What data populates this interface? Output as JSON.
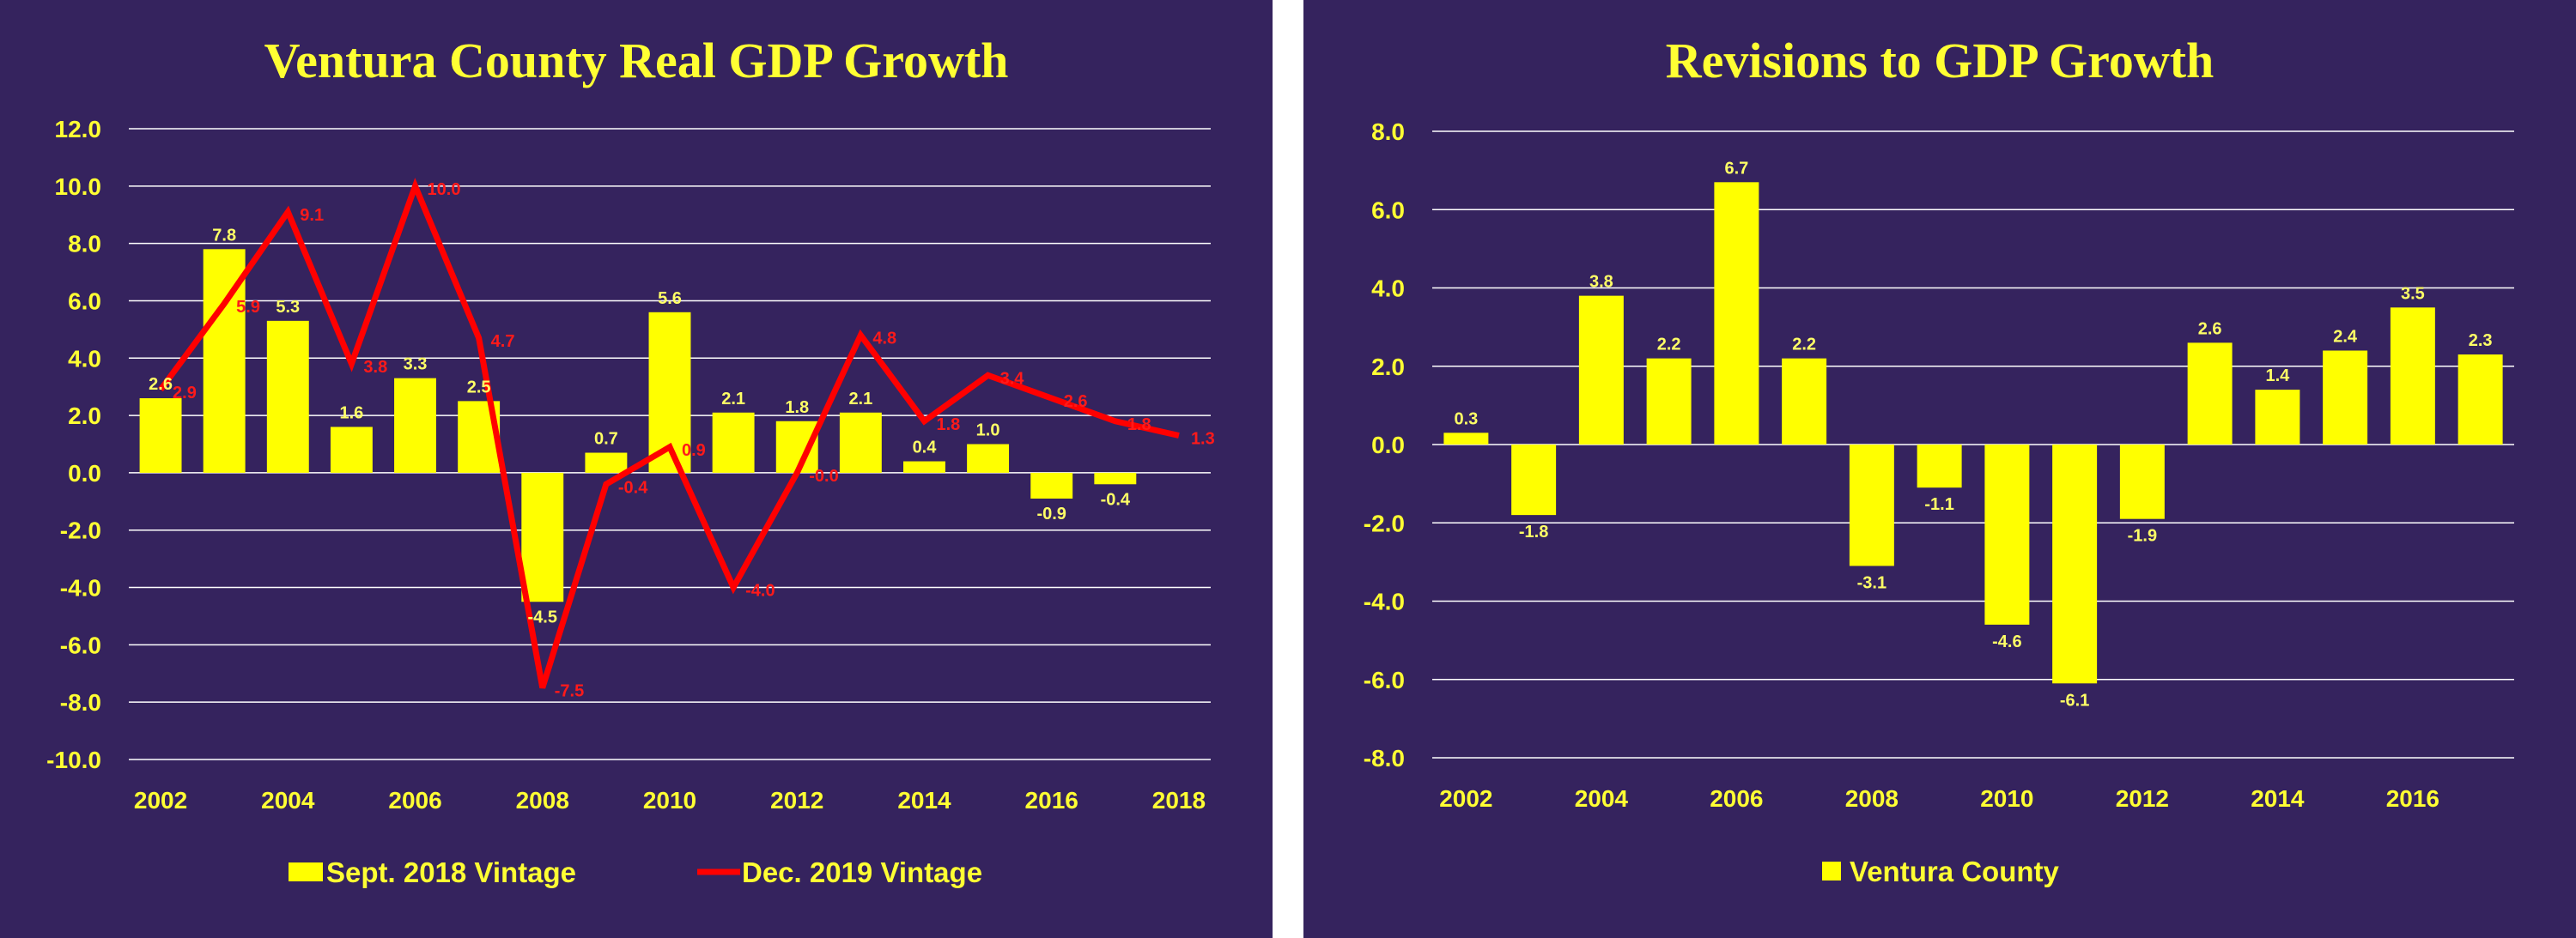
{
  "colors": {
    "background": "#35235e",
    "bar": "#ffff00",
    "line": "#ff0000",
    "text": "#ffff33",
    "grid": "#ffffff"
  },
  "chart_data": [
    {
      "type": "bar",
      "title": "Ventura County Real GDP Growth",
      "x": [
        2002,
        2003,
        2004,
        2005,
        2006,
        2007,
        2008,
        2009,
        2010,
        2011,
        2012,
        2013,
        2014,
        2015,
        2016,
        2017,
        2018
      ],
      "x_tick_labels": [
        "2002",
        "2004",
        "2006",
        "2008",
        "2010",
        "2012",
        "2014",
        "2016",
        "2018"
      ],
      "y_tick_labels": [
        "12.0",
        "10.0",
        "8.0",
        "6.0",
        "4.0",
        "2.0",
        "0.0",
        "-2.0",
        "-4.0",
        "-6.0",
        "-8.0",
        "-10.0"
      ],
      "ylim": [
        -10,
        12
      ],
      "grid": true,
      "legend_position": "bottom",
      "series": [
        {
          "name": "Sept. 2018 Vintage",
          "type": "bar",
          "x": [
            2002,
            2003,
            2004,
            2005,
            2006,
            2007,
            2008,
            2009,
            2010,
            2011,
            2012,
            2013,
            2014,
            2015,
            2016,
            2017
          ],
          "values": [
            2.6,
            7.8,
            5.3,
            1.6,
            3.3,
            2.5,
            -4.5,
            0.7,
            5.6,
            2.1,
            1.8,
            2.1,
            0.4,
            1.0,
            -0.9,
            -0.4
          ],
          "labels": [
            "2.6",
            "7.8",
            "5.3",
            "1.6",
            "3.3",
            "2.5",
            "-4.5",
            "0.7",
            "5.6",
            "2.1",
            "1.8",
            "2.1",
            "0.4",
            "1.0",
            "-0.9",
            "-0.4"
          ]
        },
        {
          "name": "Dec. 2019 Vintage",
          "type": "line",
          "x": [
            2002,
            2003,
            2004,
            2005,
            2006,
            2007,
            2008,
            2009,
            2010,
            2011,
            2012,
            2013,
            2014,
            2015,
            2016,
            2017,
            2018
          ],
          "values": [
            2.9,
            5.9,
            9.1,
            3.8,
            10.0,
            4.7,
            -7.5,
            -0.4,
            0.9,
            -4.0,
            -0.0,
            4.8,
            1.8,
            3.4,
            2.6,
            1.8,
            1.3
          ],
          "labels": [
            "2.9",
            "5.9",
            "9.1",
            "3.8",
            "10.0",
            "4.7",
            "-7.5",
            "-0.4",
            "0.9",
            "-4.0",
            "-0.0",
            "4.8",
            "1.8",
            "3.4",
            "2.6",
            "1.8",
            "1.3"
          ]
        }
      ]
    },
    {
      "type": "bar",
      "title": "Revisions to GDP Growth",
      "x": [
        2002,
        2003,
        2004,
        2005,
        2006,
        2007,
        2008,
        2009,
        2010,
        2011,
        2012,
        2013,
        2014,
        2015,
        2016,
        2017
      ],
      "x_tick_labels": [
        "2002",
        "2004",
        "2006",
        "2008",
        "2010",
        "2012",
        "2014",
        "2016"
      ],
      "y_tick_labels": [
        "8.0",
        "6.0",
        "4.0",
        "2.0",
        "0.0",
        "-2.0",
        "-4.0",
        "-6.0",
        "-8.0"
      ],
      "ylim": [
        -8,
        8
      ],
      "grid": true,
      "legend_position": "bottom",
      "series": [
        {
          "name": "Ventura County",
          "type": "bar",
          "values": [
            0.3,
            -1.8,
            3.8,
            2.2,
            6.7,
            2.2,
            -3.1,
            -1.1,
            -4.6,
            -6.1,
            -1.9,
            2.6,
            1.4,
            2.4,
            3.5,
            2.3
          ],
          "labels": [
            "0.3",
            "-1.8",
            "3.8",
            "2.2",
            "6.7",
            "2.2",
            "-3.1",
            "-1.1",
            "-4.6",
            "-6.1",
            "-1.9",
            "2.6",
            "1.4",
            "2.4",
            "3.5",
            "2.3"
          ]
        }
      ]
    }
  ]
}
